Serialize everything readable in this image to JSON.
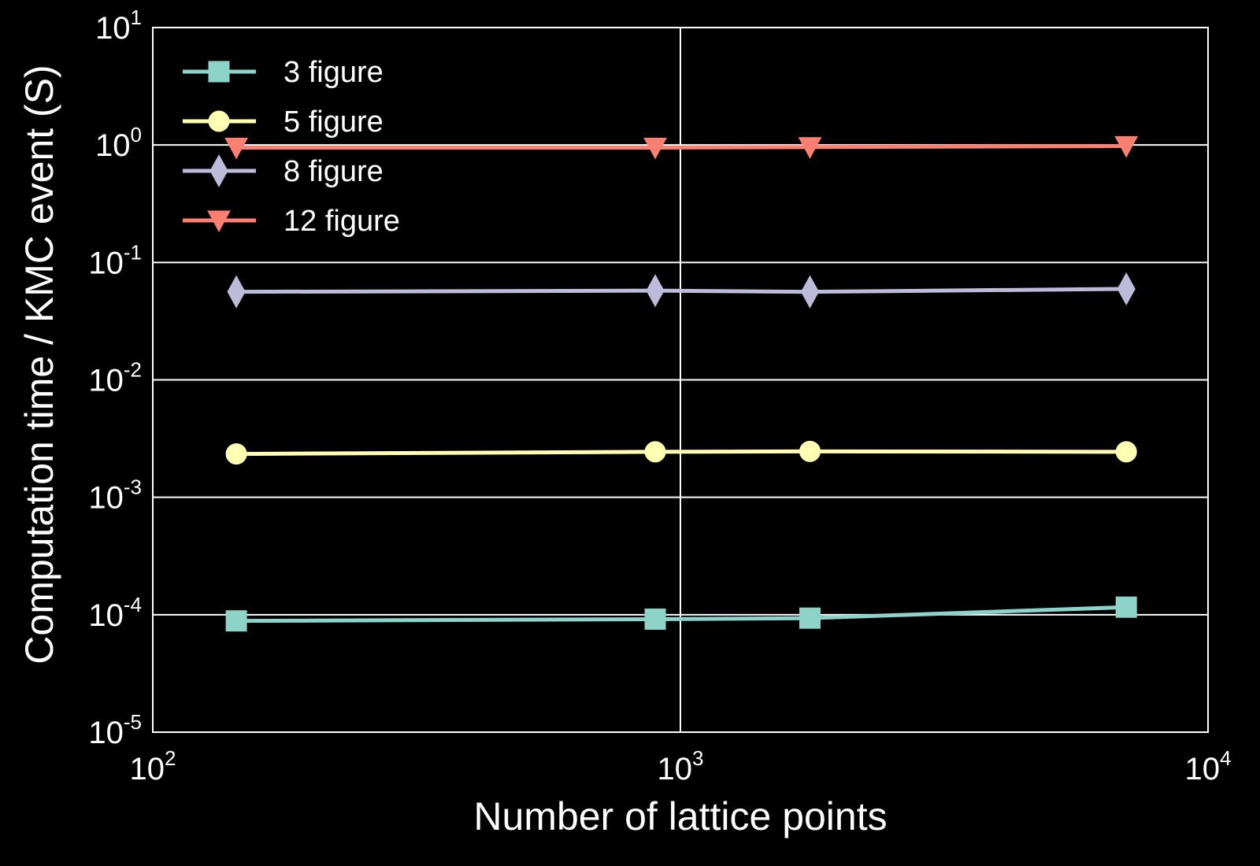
{
  "chart_data": {
    "type": "line",
    "xlabel": "Number of lattice points",
    "ylabel": "Computation time / KMC event  (S)",
    "xscale": "log",
    "yscale": "log",
    "xlim": [
      100,
      10000
    ],
    "ylim": [
      1e-05,
      10
    ],
    "grid": "major",
    "legend_position": "top-left",
    "x_ticks": [
      {
        "base": "10",
        "exp": "2"
      },
      {
        "base": "10",
        "exp": "3"
      },
      {
        "base": "10",
        "exp": "4"
      }
    ],
    "y_ticks": [
      {
        "base": "10",
        "exp": "-5"
      },
      {
        "base": "10",
        "exp": "-4"
      },
      {
        "base": "10",
        "exp": "-3"
      },
      {
        "base": "10",
        "exp": "-2"
      },
      {
        "base": "10",
        "exp": "-1"
      },
      {
        "base": "10",
        "exp": "0"
      },
      {
        "base": "10",
        "exp": "1"
      }
    ],
    "x": [
      144,
      896,
      1760,
      7000
    ],
    "series": [
      {
        "name": "3 figure",
        "marker": "square",
        "color": "#8dd3c7",
        "values": [
          8.86e-05,
          9.17e-05,
          9.35e-05,
          0.000116
        ]
      },
      {
        "name": "5 figure",
        "marker": "circle",
        "color": "#ffffb3",
        "values": [
          0.00234,
          0.00244,
          0.00246,
          0.00244
        ]
      },
      {
        "name": "8 figure",
        "marker": "diamond",
        "color": "#bebada",
        "values": [
          0.0562,
          0.0575,
          0.0562,
          0.0595
        ]
      },
      {
        "name": "12 figure",
        "marker": "triangle-down",
        "color": "#fb8072",
        "values": [
          0.95,
          0.95,
          0.96,
          0.98
        ]
      }
    ]
  }
}
